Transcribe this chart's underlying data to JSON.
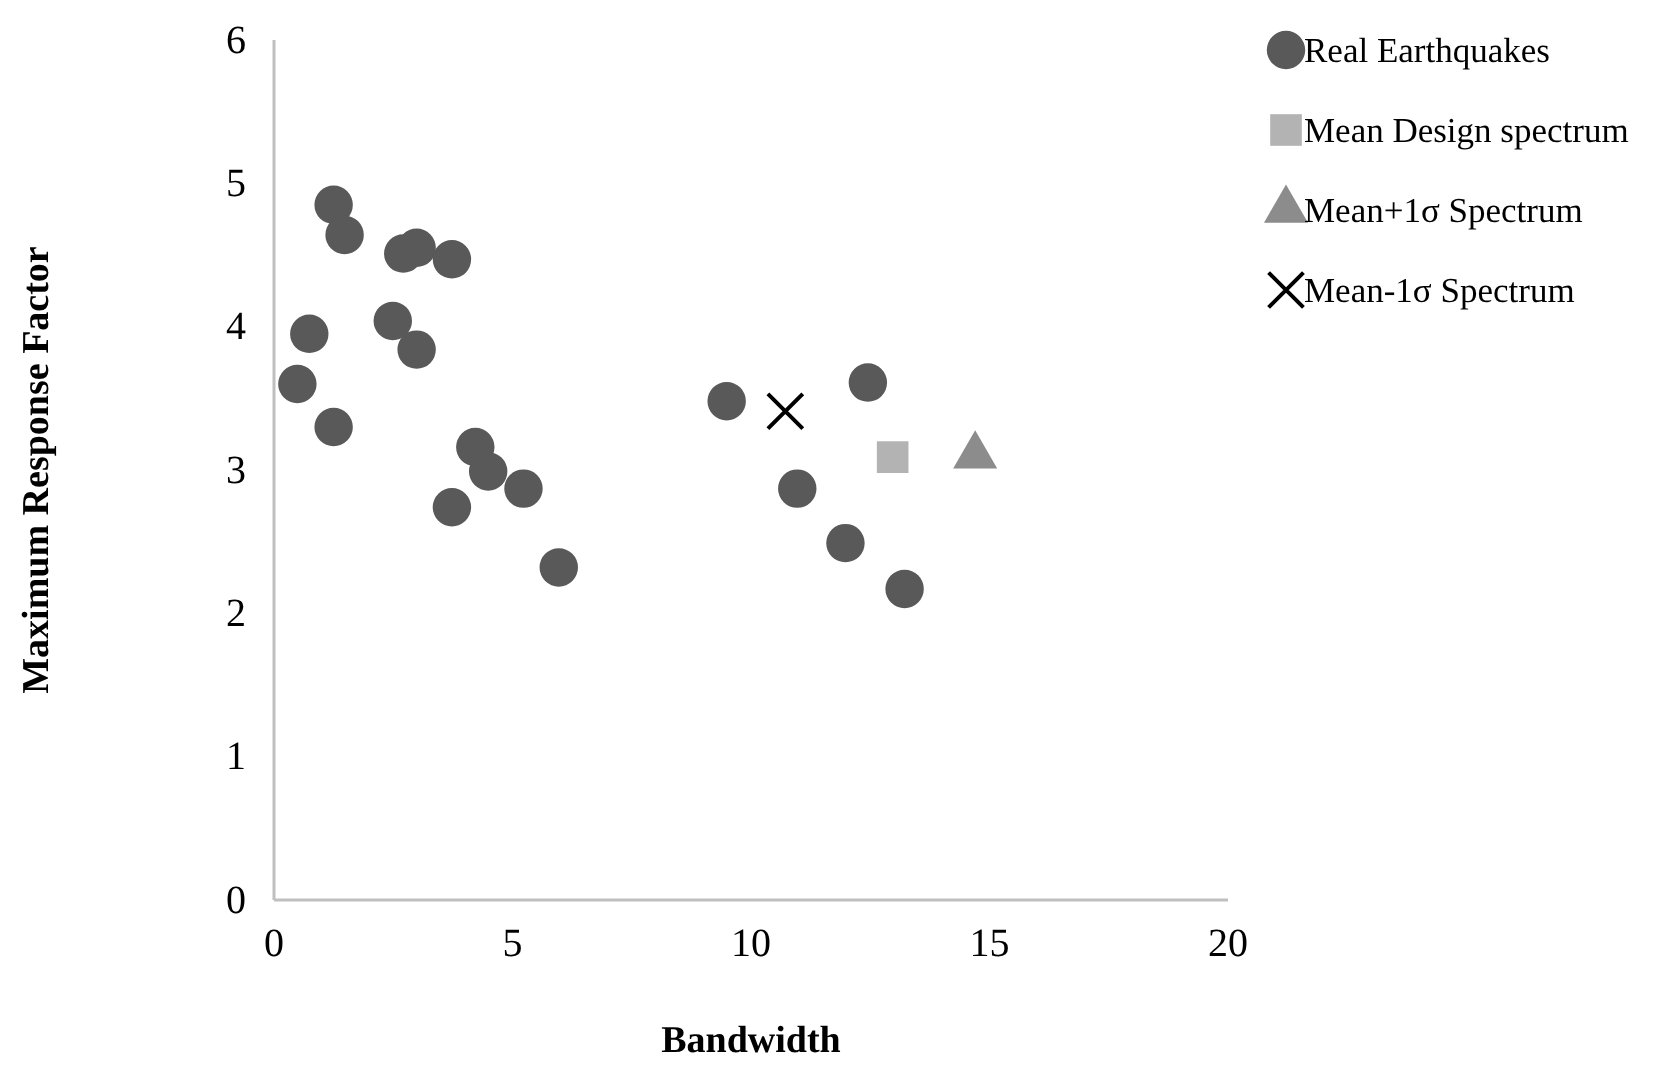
{
  "chart_data": {
    "type": "scatter",
    "xlabel": "Bandwidth",
    "ylabel": "Maximum Response Factor",
    "xlim": [
      0,
      20
    ],
    "xticks": [
      0,
      5,
      10,
      15,
      20
    ],
    "ylim": [
      0,
      6
    ],
    "yticks": [
      0,
      1,
      2,
      3,
      4,
      5,
      6
    ],
    "grid": false,
    "legend": "top right",
    "series": [
      {
        "name": "Real Earthquakes",
        "color": "#595959",
        "marker": "circle",
        "x": [
          1.25,
          1.48,
          2.71,
          2.99,
          3.73,
          0.74,
          2.49,
          2.99,
          0.49,
          1.25,
          4.22,
          4.49,
          5.23,
          3.73,
          5.97,
          9.49,
          12.45,
          10.97,
          11.98,
          13.22
        ],
        "values": [
          4.85,
          4.64,
          4.51,
          4.55,
          4.47,
          3.95,
          4.04,
          3.84,
          3.6,
          3.3,
          3.16,
          2.99,
          2.87,
          2.74,
          2.32,
          3.48,
          3.61,
          2.87,
          2.49,
          2.17
        ]
      },
      {
        "name": "Mean Design spectrum",
        "color": "#b3b3b3",
        "marker": "square",
        "x": [
          12.97
        ],
        "values": [
          3.09
        ]
      },
      {
        "name": "Mean+1σ Spectrum",
        "color": "#8c8c8c",
        "marker": "triangle",
        "x": [
          14.7
        ],
        "values": [
          3.1
        ]
      },
      {
        "name": "Mean-1σ Spectrum",
        "color": "#000000",
        "marker": "cross",
        "x": [
          10.72
        ],
        "values": [
          3.41
        ]
      }
    ]
  }
}
